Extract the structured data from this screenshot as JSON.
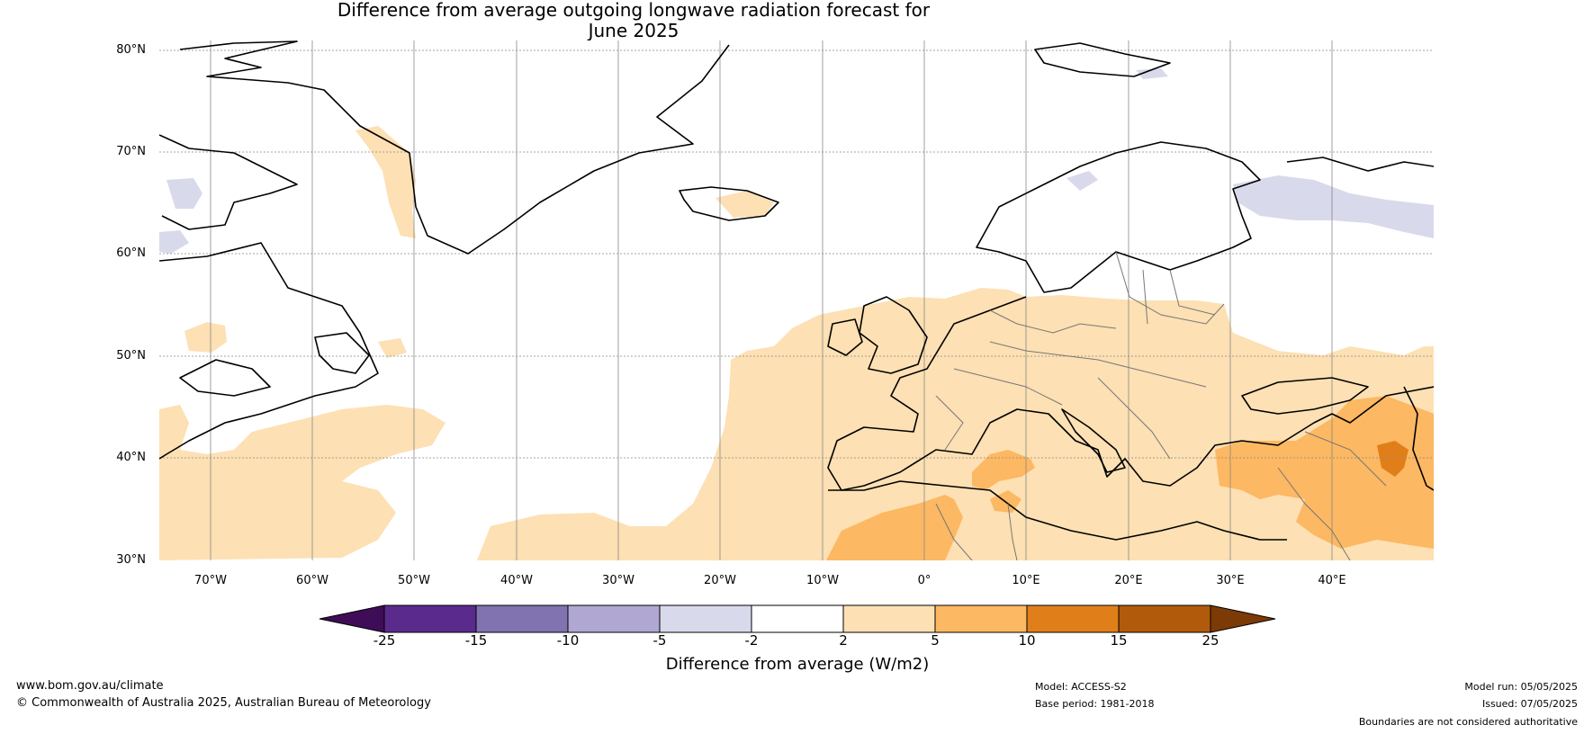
{
  "title_line1": "Difference from average outgoing longwave radiation forecast for",
  "title_line2": "June 2025",
  "lat_labels": [
    "80°N",
    "70°N",
    "60°N",
    "50°N",
    "40°N",
    "30°N"
  ],
  "lon_labels": [
    "70°W",
    "60°W",
    "50°W",
    "40°W",
    "30°W",
    "20°W",
    "10°W",
    "0°",
    "10°E",
    "20°E",
    "30°E",
    "40°E"
  ],
  "colorbar": {
    "ticks": [
      "-25",
      "-15",
      "-10",
      "-5",
      "-2",
      "2",
      "5",
      "10",
      "15",
      "25"
    ],
    "colors": [
      "#3f0d57",
      "#5a2b8c",
      "#8073b0",
      "#b0a8d2",
      "#d9d9ec",
      "#ffffff",
      "#fde0b3",
      "#fcb862",
      "#e07f1a",
      "#b25a0b",
      "#7c3a06"
    ],
    "label": "Difference from average (W/m2)"
  },
  "footer": {
    "website": "www.bom.gov.au/climate",
    "copyright": "© Commonwealth of Australia 2025, Australian Bureau of Meteorology",
    "model": "Model: ACCESS-S2",
    "base_period": "Base period: 1981-2018",
    "model_run": "Model run: 05/05/2025",
    "issued": "Issued: 07/05/2025",
    "disclaimer": "Boundaries are not considered authoritative"
  }
}
